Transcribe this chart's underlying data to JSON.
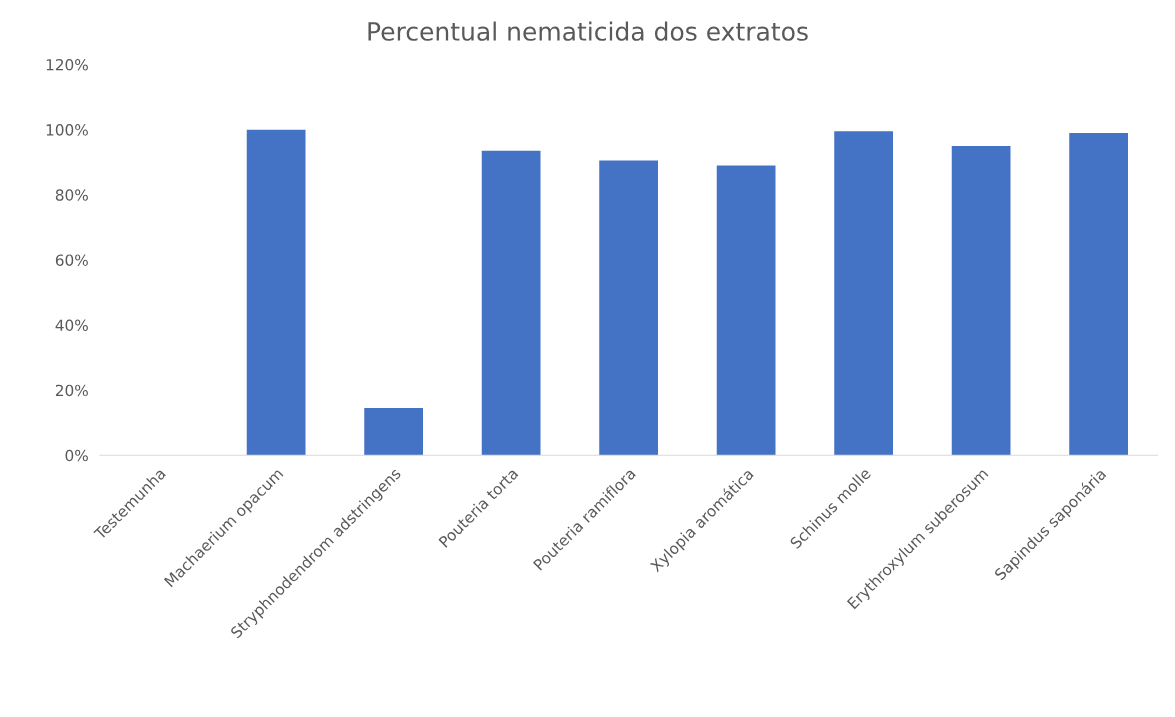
{
  "chart_data": {
    "type": "bar",
    "title": "Percentual nematicida dos extratos",
    "categories": [
      "Testemunha",
      "Machaerium opacum",
      "Stryphnodendrom adstringens",
      "Pouteria torta",
      "Pouteria ramiflora",
      "Xylopia aromática",
      "Schinus molle",
      "Erythroxylum suberosum",
      "Sapindus saponária"
    ],
    "values": [
      0,
      100,
      14.5,
      93.5,
      90.5,
      89,
      99.5,
      95,
      99
    ],
    "color": "#4472c4",
    "ylim": [
      0,
      120
    ],
    "yticks": [
      {
        "value": 0,
        "label": "0%"
      },
      {
        "value": 20,
        "label": "20%"
      },
      {
        "value": 40,
        "label": "40%"
      },
      {
        "value": 60,
        "label": "60%"
      },
      {
        "value": 80,
        "label": "80%"
      },
      {
        "value": 100,
        "label": "100%"
      },
      {
        "value": 120,
        "label": "120%"
      }
    ],
    "grid": false
  }
}
